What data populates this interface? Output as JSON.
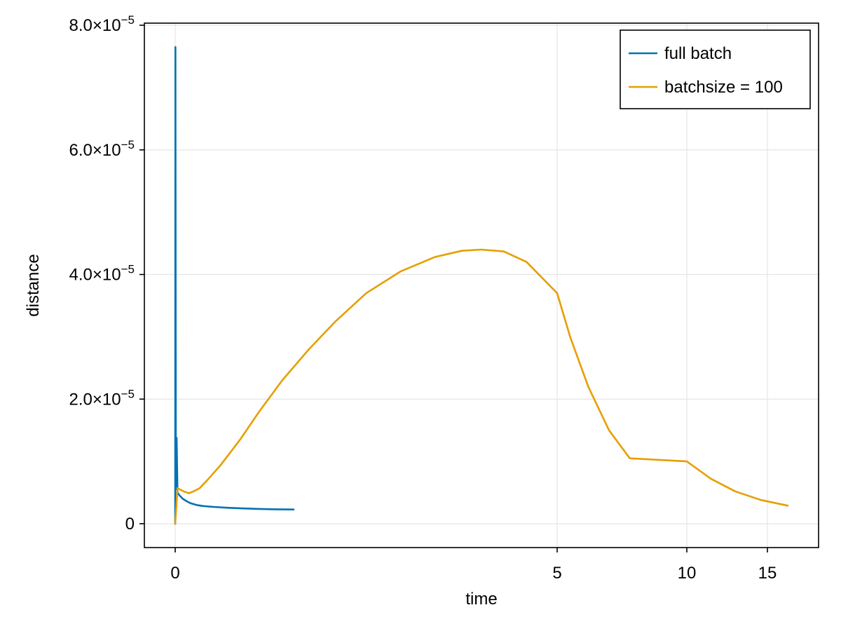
{
  "chart_data": {
    "type": "line",
    "xlabel": "time",
    "ylabel": "distance",
    "x_ticks": [
      {
        "label": "0",
        "value": 0
      },
      {
        "label": "5",
        "value": 5
      },
      {
        "label": "10",
        "value": 10
      },
      {
        "label": "15",
        "value": 15
      }
    ],
    "y_ticks": [
      {
        "base": "0",
        "exp": "",
        "value": 0
      },
      {
        "base": "2.0×10",
        "exp": "−5",
        "value": 2e-05
      },
      {
        "base": "4.0×10",
        "exp": "−5",
        "value": 4e-05
      },
      {
        "base": "6.0×10",
        "exp": "−5",
        "value": 6e-05
      },
      {
        "base": "8.0×10",
        "exp": "−5",
        "value": 8e-05
      }
    ],
    "ylim": [
      -3.8e-06,
      8.05e-05
    ],
    "grid": true,
    "legend_position": "top-right",
    "series": [
      {
        "name": "full batch",
        "color": "#0072b2",
        "points": [
          [
            0,
            0.0
          ],
          [
            0.003,
            7.65e-05
          ],
          [
            0.008,
            5.5e-06
          ],
          [
            0.018,
            1.38e-05
          ],
          [
            0.03,
            5e-06
          ],
          [
            0.06,
            4.5e-06
          ],
          [
            0.1,
            4e-06
          ],
          [
            0.15,
            3.6e-06
          ],
          [
            0.2,
            3.3e-06
          ],
          [
            0.28,
            3e-06
          ],
          [
            0.36,
            2.85e-06
          ],
          [
            0.5,
            2.7e-06
          ],
          [
            0.7,
            2.55e-06
          ],
          [
            0.9,
            2.45e-06
          ],
          [
            1.1,
            2.37e-06
          ],
          [
            1.3,
            2.32e-06
          ],
          [
            1.55,
            2.28e-06
          ]
        ]
      },
      {
        "name": "batchsize = 100",
        "color": "#e69f00",
        "points": [
          [
            0,
            0.0
          ],
          [
            0.03,
            5.7e-06
          ],
          [
            0.11,
            5.2e-06
          ],
          [
            0.18,
            4.9e-06
          ],
          [
            0.24,
            5.2e-06
          ],
          [
            0.32,
            5.7e-06
          ],
          [
            0.42,
            7e-06
          ],
          [
            0.6,
            9.5e-06
          ],
          [
            0.85,
            1.35e-05
          ],
          [
            1.1,
            1.8e-05
          ],
          [
            1.4,
            2.3e-05
          ],
          [
            1.75,
            2.8e-05
          ],
          [
            2.1,
            3.25e-05
          ],
          [
            2.5,
            3.7e-05
          ],
          [
            2.95,
            4.05e-05
          ],
          [
            3.4,
            4.28e-05
          ],
          [
            3.75,
            4.38e-05
          ],
          [
            4.0,
            4.4e-05
          ],
          [
            4.3,
            4.37e-05
          ],
          [
            4.6,
            4.2e-05
          ],
          [
            5.0,
            3.7e-05
          ],
          [
            5.5,
            3e-05
          ],
          [
            6.2,
            2.2e-05
          ],
          [
            7.0,
            1.5e-05
          ],
          [
            7.8,
            1.05e-05
          ],
          [
            10.0,
            1e-05
          ],
          [
            11.5,
            7.2e-06
          ],
          [
            13.0,
            5.2e-06
          ],
          [
            14.6,
            3.8e-06
          ],
          [
            16.0,
            2.9e-06
          ]
        ]
      }
    ]
  }
}
